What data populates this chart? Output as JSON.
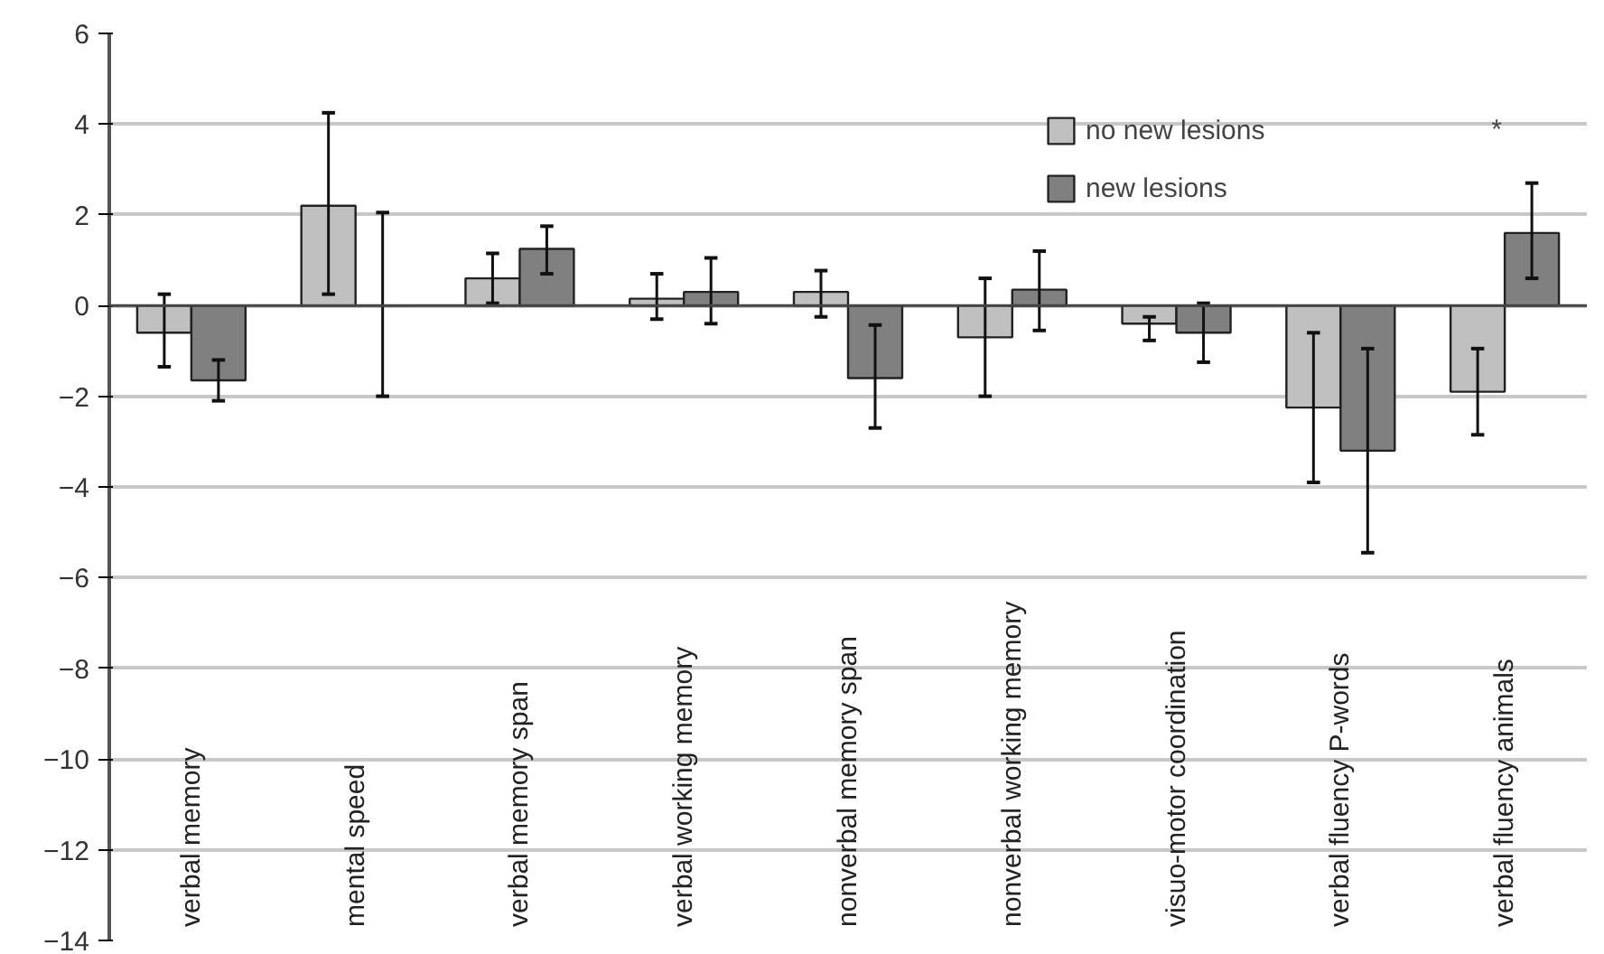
{
  "chart_data": {
    "type": "bar",
    "categories": [
      "verbal memory",
      "mental speed",
      "verbal memory span",
      "verbal working memory",
      "nonverbal memory span",
      "nonverbal working memory",
      "visuo-motor coordination",
      "verbal fluency P-words",
      "verbal fluency animals"
    ],
    "series": [
      {
        "name": "no new lesions",
        "color": "#c0c0c0",
        "values": [
          -0.6,
          2.2,
          0.6,
          0.15,
          0.3,
          -0.7,
          -0.4,
          -2.25,
          -1.9
        ],
        "errors": [
          [
            -1.35,
            0.25
          ],
          [
            0.25,
            4.25
          ],
          [
            0.05,
            1.15
          ],
          [
            -0.3,
            0.7
          ],
          [
            -0.25,
            0.77
          ],
          [
            -2.0,
            0.6
          ],
          [
            -0.77,
            -0.25
          ],
          [
            -3.9,
            -0.6
          ],
          [
            -2.85,
            -0.95
          ]
        ]
      },
      {
        "name": "new lesions",
        "color": "#808080",
        "values": [
          -1.65,
          0,
          1.25,
          0.3,
          -1.6,
          0.35,
          -0.6,
          -3.2,
          1.6
        ],
        "errors": [
          [
            -2.1,
            -1.2
          ],
          [
            -2.0,
            2.05
          ],
          [
            0.7,
            1.75
          ],
          [
            -0.4,
            1.05
          ],
          [
            -2.7,
            -0.43
          ],
          [
            -0.55,
            1.2
          ],
          [
            -1.25,
            0.05
          ],
          [
            -5.45,
            -0.95
          ],
          [
            0.6,
            2.7
          ]
        ]
      }
    ],
    "ylim": [
      -14,
      6
    ],
    "yticks": [
      -14,
      -12,
      -10,
      -8,
      -6,
      -4,
      -2,
      0,
      2,
      4,
      6
    ],
    "grid": "y",
    "legend": "top right",
    "annotations": [
      "*"
    ]
  }
}
